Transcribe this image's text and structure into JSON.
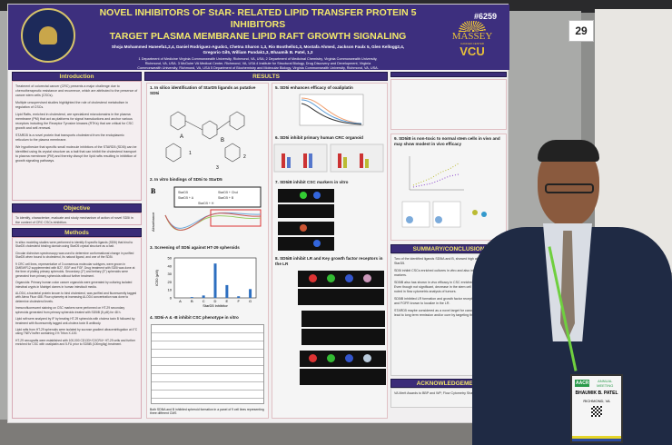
{
  "poster": {
    "title_line1": "NOVEL INHIBITORS OF StAR- RELATED LIPID TRANSFER PROTEIN 5 INHIBITORS",
    "title_line2": "TARGET PLASMA MEMBRANE LIPID RAFT GROWTH SIGNALING",
    "poster_number": "#6259",
    "authors_line1": "Shoja Mohammed Haneefa1,2,4, Daniel Rodriguez-Agudo1, Chetna Sharon 1,3, Rio Boothello1,3, Mostafa Ahmed, Jackson Faulx 5, Glen Kellogg2,4,",
    "authors_line2": "Gregorio Gil5, William Pandak1,3, Bhaumik B. Patel, 1,3",
    "affil_line1": "1 Department of Medicine Virginia Commonwealth University, Richmond, VA, USA; 2 Department of Medicinal Chemistry, Virginia Commonwealth University,",
    "affil_line2": "Richmond, VA, USA. 3 McGuire VA Medical Center, Richmond, VA, USA 4 Institute for Structural Biology, Drug Discovery and Development, Virginia",
    "affil_line3": "Commonwealth University, Richmond, VA, USA 5 Department of Biochemistry and Molecular Biology, Virginia Commonwealth University, Richmond, VA, USA.",
    "logo": {
      "massey": "MASSEY",
      "cancer_center": "CANCER CENTER",
      "vcu": "VCU"
    },
    "sections": {
      "introduction": "Introduction",
      "objective": "Objective",
      "methods": "Methods",
      "results": "RESULTS",
      "summary": "SUMMARY/CONCLUSION",
      "acknowledgement": "ACKNOWLEDGEMENT"
    },
    "intro_bullets": [
      "Treatment of colorectal cancer (CRC) presents a major challenge due to chemotherapeutic resistance and recurrence, which are attributed to the presence of cancer stem cells (CSCs).",
      "Multiple unsupervised studies highlighted the role of cholesterol metabolism in regulation of CSCs.",
      "Lipid Rafts, enriched in cholesterol, are specialized microdomains in the plasma membrane (PM) that act as platforms for signal transductions and anchor various receptors including the Receptor Tyrosine kinases (RTKs) that are critical for CSC growth and self-renewal.",
      "STARD5 is a novel protein that transports cholesterol from the endoplasmic reticulum to the plasma membrane.",
      "We hypothesize that specific small molecule inhibitors of the STARD5 (SD5i) can be identified using its crystal structure as a bait that can inhibit the cholesterol transport to plasma membrane (PM) and thereby disrupt the lipid rafts resulting in inhibition of growth signaling pathways."
    ],
    "objective_text": "To identify, characterize, evaluate and study mechanism of action of novel SD5i in the context of CRC CSCs inhibition.",
    "methods_bullets": [
      "In silico modeling studies were performed to identify 8 specific ligands (SD5i) that bind to StarD5 cholesterol binding domain using StarD5 crystal structure as a bait.",
      "Circular dichroism spectroscopy was used to determine conformational change in purified StarD5 when bound to cholesterol, its natural ligand, and one of the SD5i.",
      "9 CRC cell lines, representative of 3 consensus molecular subtypes, were grown in DMEM/F12 supplemented with B27, EGF and FGF. Drug treatment with SD5i was done at the time of plating primary spheroids. Secondary (2°) and tertiary (3°) spheroids were generated from primary spheroids without further treatment.",
      "Organoids: Primary human colon cancer organoids were generated by culturing isolated intestinal crypts in Matrigel domes in human intesticult media.",
      "ALOD4, a bacterial protein known to bind cholesterol, was purified and fluorescently tagged with Alexa Fluor 488. Flow cytometry at increasing ALOD4 concentration was done to determine cholesterol levels.",
      "Immunofluorescent staining on CSC markers were performed on HT-29 secondary spheroids generated from primary spheroids treated with SD5iB (5 µM) for 48 h.",
      "Lipid raft were analyzed by IF by treating HT-29 spheroids with cholera toxin B followed by treatment with fluorescently tagged anti-cholera toxin B antibody.",
      "Lipid rafts from HT-29 spheroids were isolated by sucrose gradient ultracentrifugation at 4°C using TNEV buffer containing 1% Triton X-100.",
      "HT-29 xenografts were established with 100,000 CD133+/CXCR4+ HT-29 cells and further enriched for CSC with oxaliplatin and 5-FU prior to SD5iB (100mg/kg) treatment."
    ],
    "results_panels": [
      "1. In silico identification of StarD5 ligands as putative SD5i",
      "2. In vitro bindings of SD5i to StarD5",
      "3. Screening of SD5i against HT-29 spheroids",
      "4. SD5i-A & -B inhibit CSC phenotype in vitro",
      "5. SD5i enhances efficacy of oxaliplatin",
      "6. SD5i inhibit primary human CRC organoid",
      "7. SD5iB inhibit CSC markers in vitro",
      "8. SD5iB inhibit LR and Key growth factor receptors in the LR",
      "9. SD5iB is non-toxic to normal stem cells in vivo and may show modest in vivo efficacy"
    ],
    "cd_legend": [
      "StarD5",
      "StarD5 + Chol",
      "StarD5 + A",
      "StarD5 + B",
      "StarD5 + H"
    ],
    "cd_ylabel": "Absorbance",
    "molecule_labels": [
      "A",
      "B",
      "1",
      "2",
      "3"
    ],
    "screen_chart": {
      "ylabel": "IC50 (µM)",
      "xlabel": "StarD5 inhibitor",
      "categories": [
        "A",
        "B",
        "C",
        "D",
        "E",
        "F",
        "G"
      ],
      "values": [
        0,
        1,
        3,
        43,
        16,
        2,
        11
      ],
      "yticks": [
        "50",
        "40",
        "30",
        "20",
        "10",
        "0"
      ]
    },
    "table_caption": "Both SD5iA and B inhibited spheroid formation in a panel of 9 cell lines representing three different CMS",
    "summary_bullets": [
      "Two of the identified ligands SD5iA and B, showed high affinity binding to StarD5.",
      "SD5i inhibit CSCs enriched cultures in vitro and also inhibited stem cell markers.",
      "SD5iB also has shown in vivo efficacy in CSC enriched HT-29 xenografts. Even though not significant, decrease in the stem cell marker, CD133 was noted in flow cytometric analysis of tumors.",
      "SD5iB inhibited LR formation and growth factor receptors- IGF1R, EGFR and FGFR known to localize in the LR.",
      "STARD5 maybe considered as a novel target for cancer therapies that may lead to long term remission and/or cure by targeting the CRCSCs."
    ],
    "ack_text": "VA Merit Awards to BBP and WP; Flow Cytometry Shared Resource - VCU"
  },
  "booth_number": "29",
  "badge": {
    "org": "AACR",
    "event": "ANNUAL MEETING",
    "name": "BHAUMIK B. PATEL",
    "city": "RICHMOND, VA"
  },
  "colors": {
    "header": "#3d2f7e",
    "title": "#f2e86b",
    "gold": "#e8c13a"
  }
}
